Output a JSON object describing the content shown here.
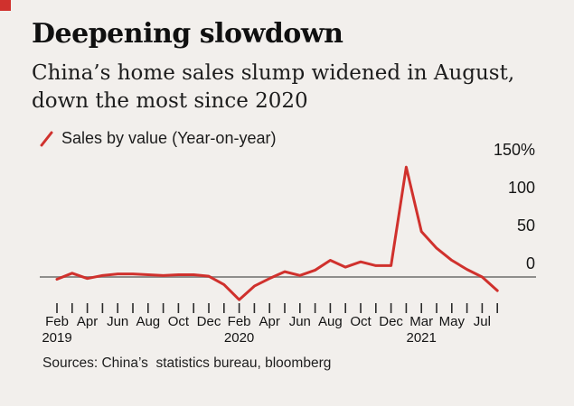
{
  "page": {
    "background": "#f2efec",
    "accent": "#d0312d",
    "axis_color": "#8f8e8c"
  },
  "header": {
    "title": "Deepening slowdown",
    "subtitle_line1": "China’s home sales slump widened in August,",
    "subtitle_line2": "down the most since 2020"
  },
  "legend": {
    "marker": "red-slash",
    "label": "Sales by value (Year-on-year)"
  },
  "source": {
    "text": "Sources: China’s  statistics bureau, bloomberg"
  },
  "chart_data": {
    "type": "line",
    "title": "Deepening slowdown",
    "subtitle": "China’s home sales slump widened in August, down the most since 2020",
    "xlabel": "",
    "ylabel": "Sales by value, year-on-year (%)",
    "ylim": [
      -45,
      165
    ],
    "grid": "zero-line-only",
    "legend_position": "top-left",
    "y_ticks": [
      {
        "label": "150%",
        "value": 150
      },
      {
        "label": "100",
        "value": 100
      },
      {
        "label": "50",
        "value": 50
      },
      {
        "label": "0",
        "value": 0
      }
    ],
    "x_ticks": [
      {
        "month": "Feb",
        "year": "2019"
      },
      {
        "month": ""
      },
      {
        "month": "Apr"
      },
      {
        "month": ""
      },
      {
        "month": "Jun"
      },
      {
        "month": ""
      },
      {
        "month": "Aug"
      },
      {
        "month": ""
      },
      {
        "month": "Oct"
      },
      {
        "month": ""
      },
      {
        "month": "Dec"
      },
      {
        "month": ""
      },
      {
        "month": "Feb",
        "year": "2020"
      },
      {
        "month": ""
      },
      {
        "month": "Apr"
      },
      {
        "month": ""
      },
      {
        "month": "Jun"
      },
      {
        "month": ""
      },
      {
        "month": "Aug"
      },
      {
        "month": ""
      },
      {
        "month": "Oct"
      },
      {
        "month": ""
      },
      {
        "month": "Dec"
      },
      {
        "month": ""
      },
      {
        "month": "Mar",
        "year": "2021"
      },
      {
        "month": ""
      },
      {
        "month": "May"
      },
      {
        "month": ""
      },
      {
        "month": "Jul"
      },
      {
        "month": ""
      }
    ],
    "x": [
      "Feb 2019",
      "Mar 2019",
      "Apr 2019",
      "May 2019",
      "Jun 2019",
      "Jul 2019",
      "Aug 2019",
      "Sep 2019",
      "Oct 2019",
      "Nov 2019",
      "Dec 2019",
      "Jan 2020",
      "Feb 2020",
      "Mar 2020",
      "Apr 2020",
      "May 2020",
      "Jun 2020",
      "Jul 2020",
      "Aug 2020",
      "Sep 2020",
      "Oct 2020",
      "Nov 2020",
      "Dec 2020",
      "Jan-Feb 2021",
      "Mar 2021",
      "Apr 2021",
      "May 2021",
      "Jun 2021",
      "Jul 2021",
      "Aug 2021"
    ],
    "series": [
      {
        "name": "Sales by value (Year-on-year)",
        "color": "#d0312d",
        "values": [
          -3,
          5,
          -2,
          2,
          4,
          4,
          3,
          2,
          3,
          3,
          1,
          -10,
          -30,
          -12,
          -2,
          7,
          2,
          9,
          22,
          13,
          20,
          15,
          15,
          145,
          60,
          38,
          22,
          10,
          0,
          -18
        ]
      }
    ]
  }
}
